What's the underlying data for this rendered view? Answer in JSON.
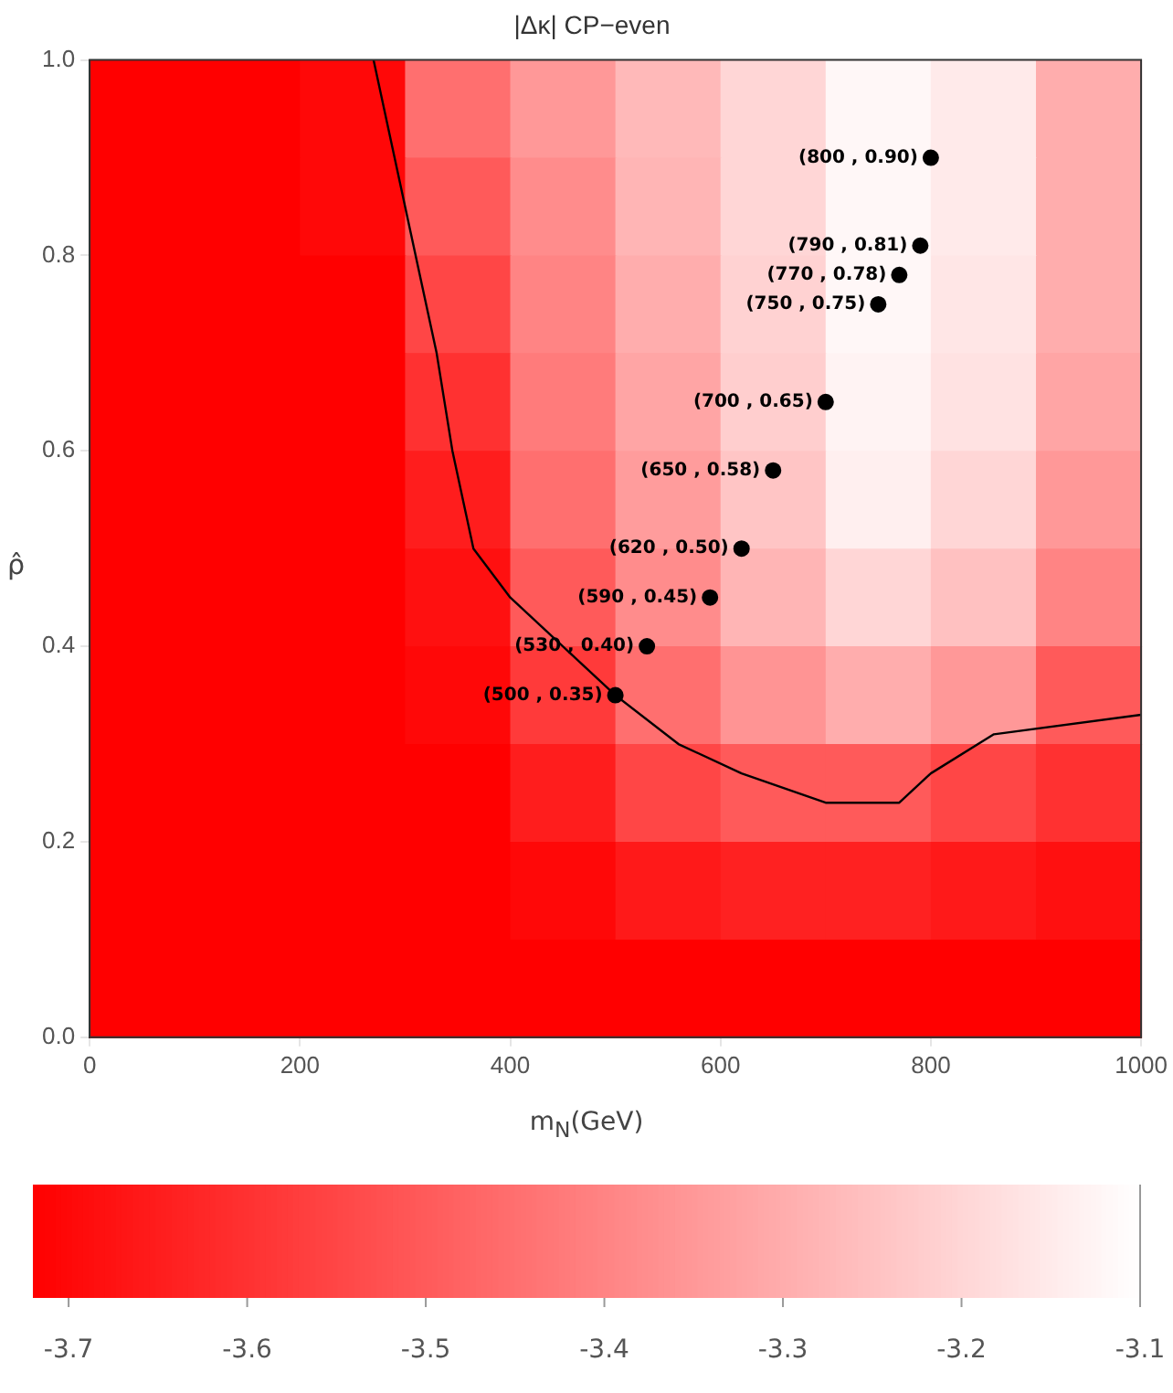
{
  "chart_data": {
    "type": "heatmap",
    "title": "|Δκ| CP−even",
    "xlabel": "m$_{N}$(GeV)",
    "ylabel": "ρ̂",
    "x": [
      50,
      150,
      250,
      350,
      450,
      550,
      650,
      750,
      850,
      950
    ],
    "y": [
      0.95,
      0.85,
      0.75,
      0.65,
      0.55,
      0.45,
      0.35,
      0.25,
      0.15,
      0.05
    ],
    "cells": [
      [
        -3.72,
        -3.72,
        -3.7,
        -3.45,
        -3.35,
        -3.27,
        -3.2,
        -3.12,
        -3.15,
        -3.3
      ],
      [
        -3.72,
        -3.72,
        -3.7,
        -3.5,
        -3.38,
        -3.28,
        -3.2,
        -3.12,
        -3.15,
        -3.3
      ],
      [
        -3.72,
        -3.72,
        -3.72,
        -3.55,
        -3.4,
        -3.3,
        -3.21,
        -3.12,
        -3.16,
        -3.3
      ],
      [
        -3.72,
        -3.72,
        -3.72,
        -3.6,
        -3.42,
        -3.32,
        -3.22,
        -3.13,
        -3.17,
        -3.32
      ],
      [
        -3.72,
        -3.72,
        -3.72,
        -3.65,
        -3.45,
        -3.34,
        -3.24,
        -3.14,
        -3.2,
        -3.35
      ],
      [
        -3.72,
        -3.72,
        -3.72,
        -3.68,
        -3.5,
        -3.38,
        -3.28,
        -3.2,
        -3.25,
        -3.4
      ],
      [
        -3.72,
        -3.72,
        -3.72,
        -3.7,
        -3.58,
        -3.45,
        -3.36,
        -3.3,
        -3.35,
        -3.5
      ],
      [
        -3.72,
        -3.72,
        -3.72,
        -3.72,
        -3.65,
        -3.55,
        -3.5,
        -3.5,
        -3.55,
        -3.6
      ],
      [
        -3.72,
        -3.72,
        -3.72,
        -3.72,
        -3.7,
        -3.66,
        -3.64,
        -3.64,
        -3.66,
        -3.68
      ],
      [
        -3.72,
        -3.72,
        -3.72,
        -3.72,
        -3.72,
        -3.72,
        -3.72,
        -3.72,
        -3.72,
        -3.72
      ]
    ],
    "clim": [
      -3.72,
      -3.1
    ],
    "cticks": [
      -3.7,
      -3.6,
      -3.5,
      -3.4,
      -3.3,
      -3.2,
      -3.1
    ],
    "xlim": [
      0,
      1000
    ],
    "xticks": [
      0,
      200,
      400,
      600,
      800,
      1000
    ],
    "ylim": [
      0,
      1
    ],
    "yticks": [
      {
        "value": 0,
        "label": "0.0"
      },
      {
        "value": 0.2,
        "label": "0.2"
      },
      {
        "value": 0.4,
        "label": "0.4"
      },
      {
        "value": 0.6,
        "label": "0.6"
      },
      {
        "value": 0.8,
        "label": "0.8"
      },
      {
        "value": 1,
        "label": "1.0"
      }
    ],
    "series": [
      {
        "type": "scatter",
        "marker": "circle",
        "color": "#000000",
        "x": [
          800,
          790,
          770,
          750,
          700,
          650,
          620,
          590,
          530,
          500
        ],
        "values": [
          0.9,
          0.81,
          0.78,
          0.75,
          0.65,
          0.58,
          0.5,
          0.45,
          0.4,
          0.35
        ],
        "value_labels": [
          "(800 , 0.90)",
          "(790 , 0.81)",
          "(770 , 0.78)",
          "(750 , 0.75)",
          "(700 , 0.65)",
          "(650 , 0.58)",
          "(620 , 0.50)",
          "(590 , 0.45)",
          "(530 , 0.40)",
          "(500 , 0.35)"
        ]
      },
      {
        "type": "line",
        "marker": "none",
        "color": "#000000",
        "x": [
          270,
          290,
          310,
          330,
          345,
          365,
          400,
          450,
          500,
          560,
          620,
          700,
          770,
          800,
          860,
          1000
        ],
        "values": [
          1.0,
          0.9,
          0.8,
          0.7,
          0.6,
          0.5,
          0.45,
          0.4,
          0.35,
          0.3,
          0.27,
          0.24,
          0.24,
          0.27,
          0.31,
          0.33
        ]
      }
    ]
  }
}
